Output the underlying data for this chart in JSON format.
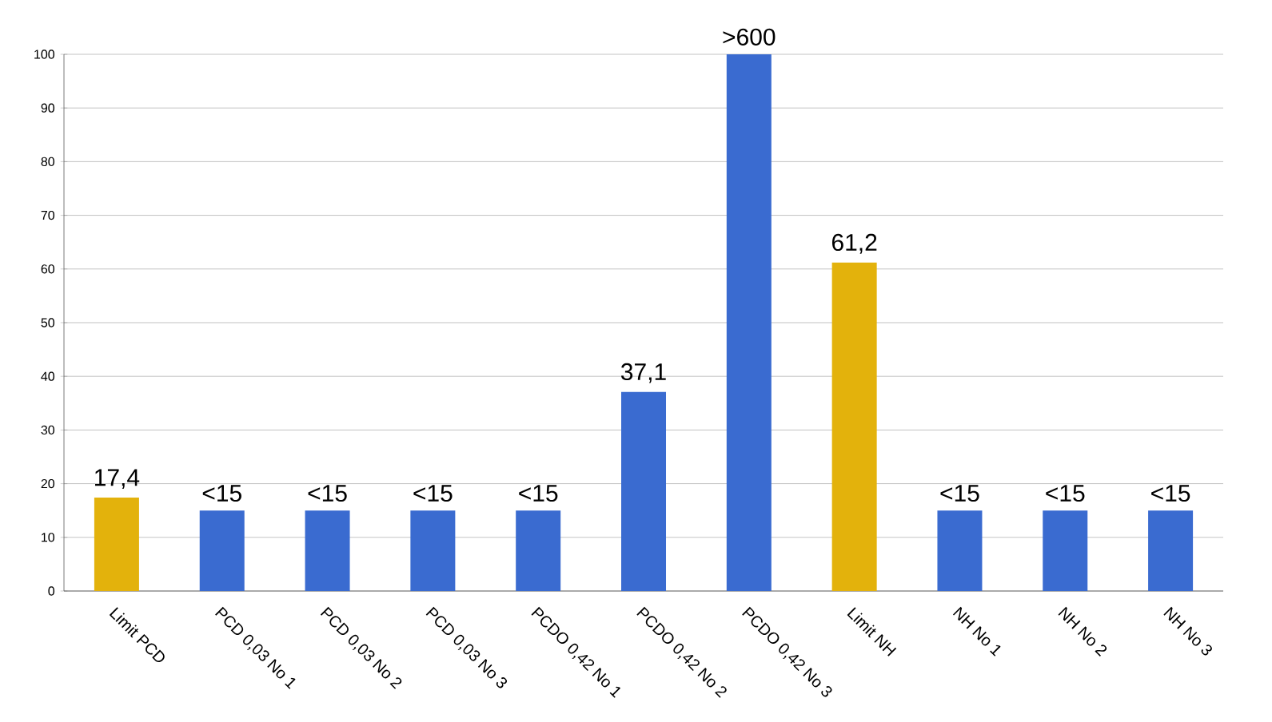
{
  "chart_data": {
    "type": "bar",
    "categories": [
      "Limit PCD",
      "PCD 0,03 No 1",
      "PCD 0,03 No 2",
      "PCD 0,03 No 3",
      "PCDO 0,42 No 1",
      "PCDO 0,42 No 2",
      "PCDO 0,42 No 3",
      "Limit NH",
      "NH No 1",
      "NH No 2",
      "NH No 3"
    ],
    "values": [
      17.4,
      15,
      15,
      15,
      15,
      37.1,
      100,
      61.2,
      15,
      15,
      15
    ],
    "value_labels": [
      "17,4",
      "<15",
      "<15",
      "<15",
      "<15",
      "37,1",
      ">600",
      "61,2",
      "<15",
      "<15",
      "<15"
    ],
    "colors": [
      "#e3b20c",
      "#3a6bd0",
      "#3a6bd0",
      "#3a6bd0",
      "#3a6bd0",
      "#3a6bd0",
      "#3a6bd0",
      "#e3b20c",
      "#3a6bd0",
      "#3a6bd0",
      "#3a6bd0"
    ],
    "ylim": [
      0,
      100
    ],
    "yticks": [
      0,
      10,
      20,
      30,
      40,
      50,
      60,
      70,
      80,
      90,
      100
    ],
    "grid": "y"
  }
}
